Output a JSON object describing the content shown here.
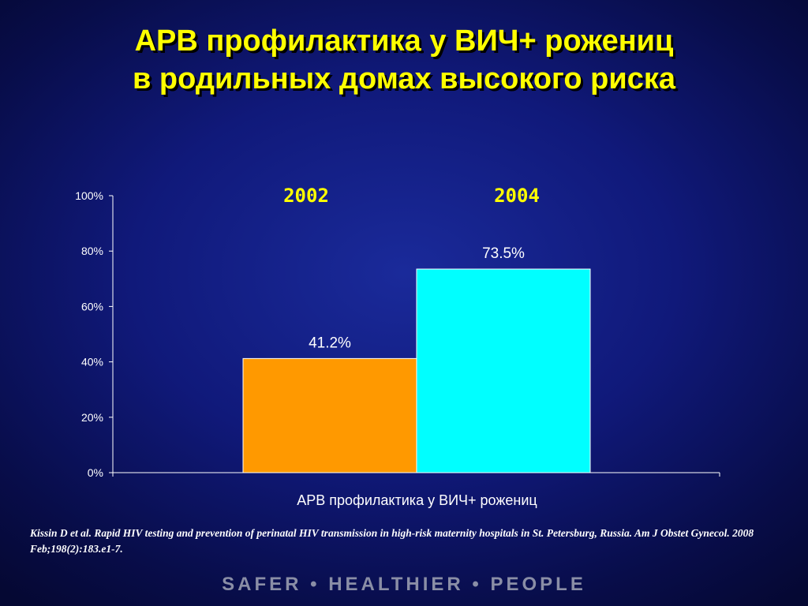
{
  "title": {
    "line1": "АРВ профилактика у ВИЧ+ рожениц",
    "line2": "в родильных домах высокого риска"
  },
  "chart_data": {
    "type": "bar",
    "categories": [
      "2002",
      "2004"
    ],
    "values": [
      41.2,
      73.5
    ],
    "data_labels": [
      "41.2%",
      "73.5%"
    ],
    "colors": [
      "#ff9900",
      "#00ffff"
    ],
    "xlabel": "АРВ профилактика у ВИЧ+ рожениц",
    "ylabel": "",
    "ylim": [
      0,
      100
    ],
    "yticks": [
      0,
      20,
      40,
      60,
      80,
      100
    ],
    "ytick_labels": [
      "0%",
      "20%",
      "40%",
      "60%",
      "80%",
      "100%"
    ],
    "grid": false,
    "legend": "top"
  },
  "citation": "Kissin D et al. Rapid HIV testing and prevention of perinatal HIV transmission in high-risk maternity hospitals in St. Petersburg, Russia. Am J Obstet Gynecol. 2008 Feb;198(2):183.e1-7.",
  "footer": "SAFER • HEALTHIER • PEOPLE",
  "colors": {
    "title": "#ffff00",
    "background": "#10197a",
    "axis": "#ffffff"
  }
}
